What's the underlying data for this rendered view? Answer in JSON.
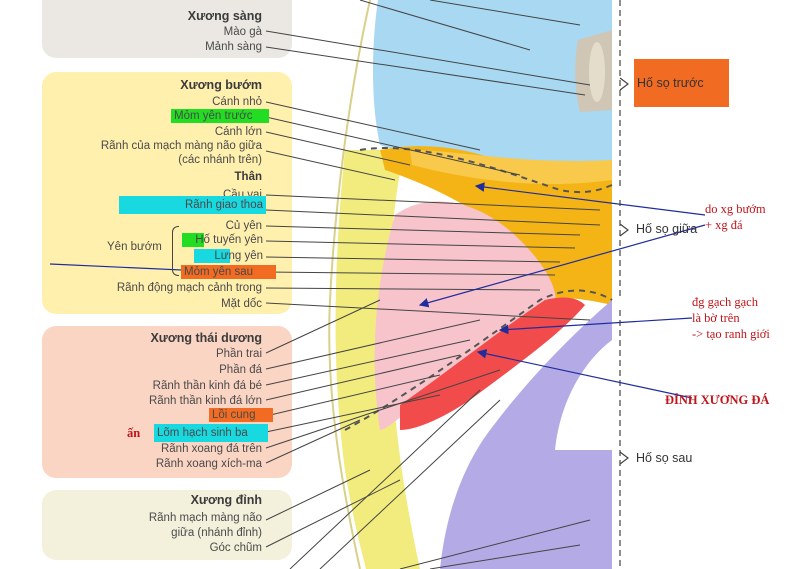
{
  "groups": {
    "ethmoid": {
      "title": "Xương sàng",
      "labels": [
        "Mào gà",
        "Mảnh sàng"
      ]
    },
    "sphenoid": {
      "title": "Xương bướm",
      "labels": {
        "canh_nho": "Cánh nhỏ",
        "mom_yen_truoc": "Mỏm yên trước",
        "canh_lon": "Cánh lớn",
        "ranh_mach_1": "Rãnh của mạch màng não giữa",
        "ranh_mach_2": "(các nhánh trên)",
        "than": "Thân",
        "cau_vai": "Cầu vai",
        "ranh_giao_thoa": "Rãnh giao thoa",
        "cu_yen": "Củ yên",
        "ho_tuyen_yen": "Hố tuyến yên",
        "lung_yen": "Lưng yên",
        "yen_buom": "Yên bướm",
        "mom_yen_sau": "Mỏm yên sau",
        "ranh_dong_mach": "Rãnh động mạch cảnh trong",
        "mat_doc": "Mặt dốc"
      }
    },
    "temporal": {
      "title": "Xương thái dương",
      "labels": {
        "phan_trai": "Phần trai",
        "phan_da": "Phần đá",
        "ranh_tk_be": "Rãnh thần kinh đá bé",
        "ranh_tk_lon": "Rãnh thần kinh đá lớn",
        "loi_cung": "Lồi cung",
        "lom_hach": "Lõm hạch sinh ba",
        "ranh_xoang_da": "Rãnh xoang đá trên",
        "ranh_xoang_xich": "Rãnh xoang xích-ma"
      }
    },
    "parietal": {
      "title": "Xương đỉnh",
      "labels": {
        "ranh_mach_1": "Rãnh mạch màng não",
        "ranh_mach_2": "giữa (nhánh đỉnh)",
        "goc_chum": "Góc chũm"
      }
    }
  },
  "fossae": {
    "anterior": "Hố sọ trước",
    "middle": "Hố sọ giữa",
    "posterior": "Hố sọ sau"
  },
  "annotations": {
    "sphenoid_petrous_1": "do xg bướm",
    "sphenoid_petrous_2": "+ xg đá",
    "dashed_1": "đg gạch gạch",
    "dashed_2": "là bờ trên",
    "dashed_3": "-> tạo ranh giới",
    "petrous_apex": "ĐỈNH XƯƠNG ĐÁ",
    "marker": "ấn"
  },
  "colors": {
    "highlight_green": "#22dd22",
    "highlight_cyan": "#19d9e0",
    "highlight_orange": "#f26b22",
    "annotation_red": "#c0151a",
    "arrow_blue": "#1f2d9c",
    "panel_ethmoid": "#ebe8e3",
    "panel_sphenoid": "#fff0ae",
    "panel_temporal": "#fbd5c4",
    "panel_parietal": "#f3f1dc",
    "bone_frontal_blue": "#a9d8f2",
    "bone_sphenoid_orange": "#f5b416",
    "bone_temporal_pink": "#f7c4cc",
    "bone_petrous_red": "#f24b4b",
    "bone_occipital_violet": "#b4abe6",
    "bone_parietal_yellow": "#f2ec7e"
  }
}
